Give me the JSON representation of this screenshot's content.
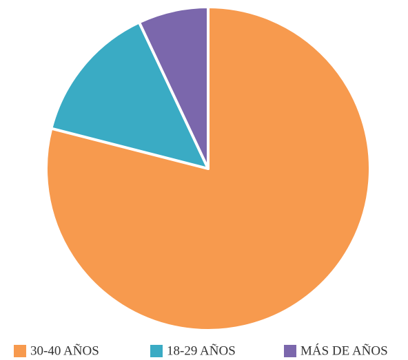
{
  "chart_data": {
    "type": "pie",
    "categories": [
      "30-40 AÑOS",
      "18-29 AÑOS",
      "MÁS DE AÑOS"
    ],
    "values": [
      79,
      14,
      7
    ],
    "colors": [
      "#f79a4e",
      "#3aabc4",
      "#7b67ac"
    ],
    "legend": "bottom"
  }
}
